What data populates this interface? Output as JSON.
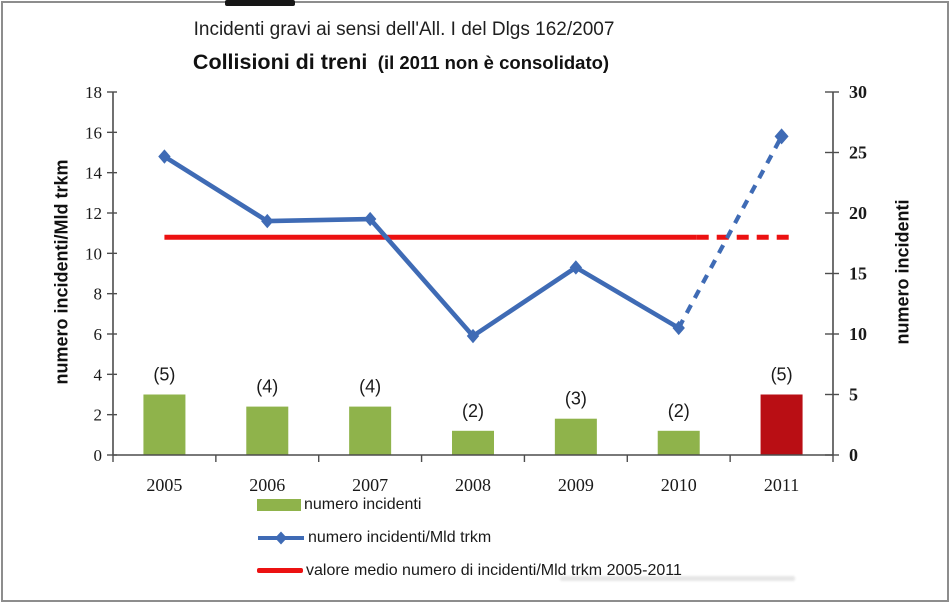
{
  "header": {
    "title": "Incidenti gravi ai sensi dell'All. I del Dlgs 162/2007",
    "subtitle_main": "Collisioni di treni",
    "subtitle_note": "(il 2011 non è consolidato)"
  },
  "chart_data": {
    "type": "combo",
    "categories": [
      "2005",
      "2006",
      "2007",
      "2008",
      "2009",
      "2010",
      "2011"
    ],
    "series": [
      {
        "name": "numero incidenti",
        "type": "bar",
        "axis": "right",
        "values": [
          5,
          4,
          4,
          2,
          3,
          2,
          5
        ],
        "point_labels": [
          "(5)",
          "(4)",
          "(4)",
          "(2)",
          "(3)",
          "(2)",
          "(5)"
        ],
        "bar_colors": [
          "#8FB34B",
          "#8FB34B",
          "#8FB34B",
          "#8FB34B",
          "#8FB34B",
          "#8FB34B",
          "#B90E14"
        ]
      },
      {
        "name": "numero incidenti/Mld trkm",
        "type": "line",
        "axis": "left",
        "values": [
          14.8,
          11.6,
          11.7,
          5.9,
          9.3,
          6.3,
          15.8
        ],
        "color": "#3F6BB5",
        "marker": "diamond",
        "dashed_after_index": 5
      },
      {
        "name": "valore medio numero di incidenti/Mld trkm 2005-2011",
        "type": "constant-line",
        "axis": "left",
        "value": 10.8,
        "color": "#EC1111",
        "dashed_after_index": 5
      }
    ],
    "left_axis": {
      "label": "numero incidenti/Mld trkm",
      "min": 0,
      "max": 18,
      "step": 2
    },
    "right_axis": {
      "label": "numero incidenti",
      "min": 0,
      "max": 30,
      "step": 5
    },
    "legend": [
      "numero incidenti",
      "numero incidenti/Mld trkm",
      "valore medio numero di incidenti/Mld trkm 2005-2011"
    ],
    "legend_position": "bottom-left",
    "grid": false
  },
  "colors": {
    "bar_green": "#8FB34B",
    "bar_red_2011": "#B90E14",
    "line_blue": "#3F6BB5",
    "mean_red": "#EC1111",
    "axis": "#4d4d4d",
    "text": "#1a1a1a"
  }
}
